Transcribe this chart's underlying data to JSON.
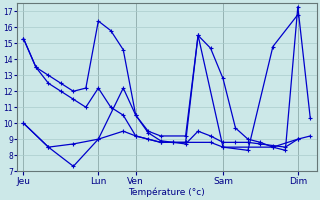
{
  "background_color": "#cce8e8",
  "grid_color": "#aacccc",
  "line_color": "#0000cc",
  "xlabel": "Température (°c)",
  "ylim": [
    7,
    17.5
  ],
  "yticks": [
    7,
    8,
    9,
    10,
    11,
    12,
    13,
    14,
    15,
    16,
    17
  ],
  "day_labels": [
    "Jeu",
    "Lun",
    "Ven",
    "Sam",
    "Dim"
  ],
  "day_x": [
    0,
    6,
    9,
    16,
    22
  ],
  "xlim": [
    -0.5,
    23.5
  ],
  "series1_x": [
    0,
    1,
    2,
    3,
    4,
    5,
    6,
    7,
    8,
    9,
    10,
    11,
    12,
    13,
    14,
    15,
    16,
    17,
    18,
    19,
    20,
    21,
    22,
    23
  ],
  "series1_y": [
    15.3,
    13.5,
    13.0,
    12.5,
    12.0,
    12.2,
    16.4,
    15.8,
    14.6,
    10.5,
    9.4,
    8.9,
    8.8,
    8.8,
    15.5,
    14.7,
    12.8,
    9.7,
    9.0,
    8.8,
    8.5,
    8.3,
    17.3,
    10.3
  ],
  "series2_x": [
    0,
    1,
    2,
    3,
    4,
    5,
    6,
    7,
    8,
    9,
    10,
    11,
    12,
    13,
    14,
    15,
    16,
    17,
    18,
    19,
    20,
    21,
    22,
    23
  ],
  "series2_y": [
    15.3,
    13.5,
    12.5,
    12.0,
    11.5,
    11.0,
    12.2,
    11.0,
    10.5,
    9.2,
    9.0,
    8.8,
    8.8,
    8.7,
    9.5,
    9.2,
    8.8,
    8.8,
    8.8,
    8.7,
    8.6,
    8.5,
    9.0,
    9.2
  ],
  "series3_x": [
    0,
    2,
    4,
    6,
    8,
    9,
    10,
    11,
    13,
    14,
    16,
    18,
    20,
    22
  ],
  "series3_y": [
    10.0,
    8.5,
    7.3,
    9.0,
    12.2,
    10.5,
    9.5,
    9.2,
    9.2,
    15.5,
    8.5,
    8.3,
    14.8,
    16.8
  ],
  "series4_x": [
    0,
    2,
    4,
    6,
    8,
    9,
    11,
    13,
    15,
    16,
    20,
    22
  ],
  "series4_y": [
    10.0,
    8.5,
    8.7,
    9.0,
    9.5,
    9.2,
    8.8,
    8.8,
    8.8,
    8.5,
    8.5,
    9.0
  ],
  "figsize": [
    3.2,
    2.0
  ],
  "dpi": 100
}
